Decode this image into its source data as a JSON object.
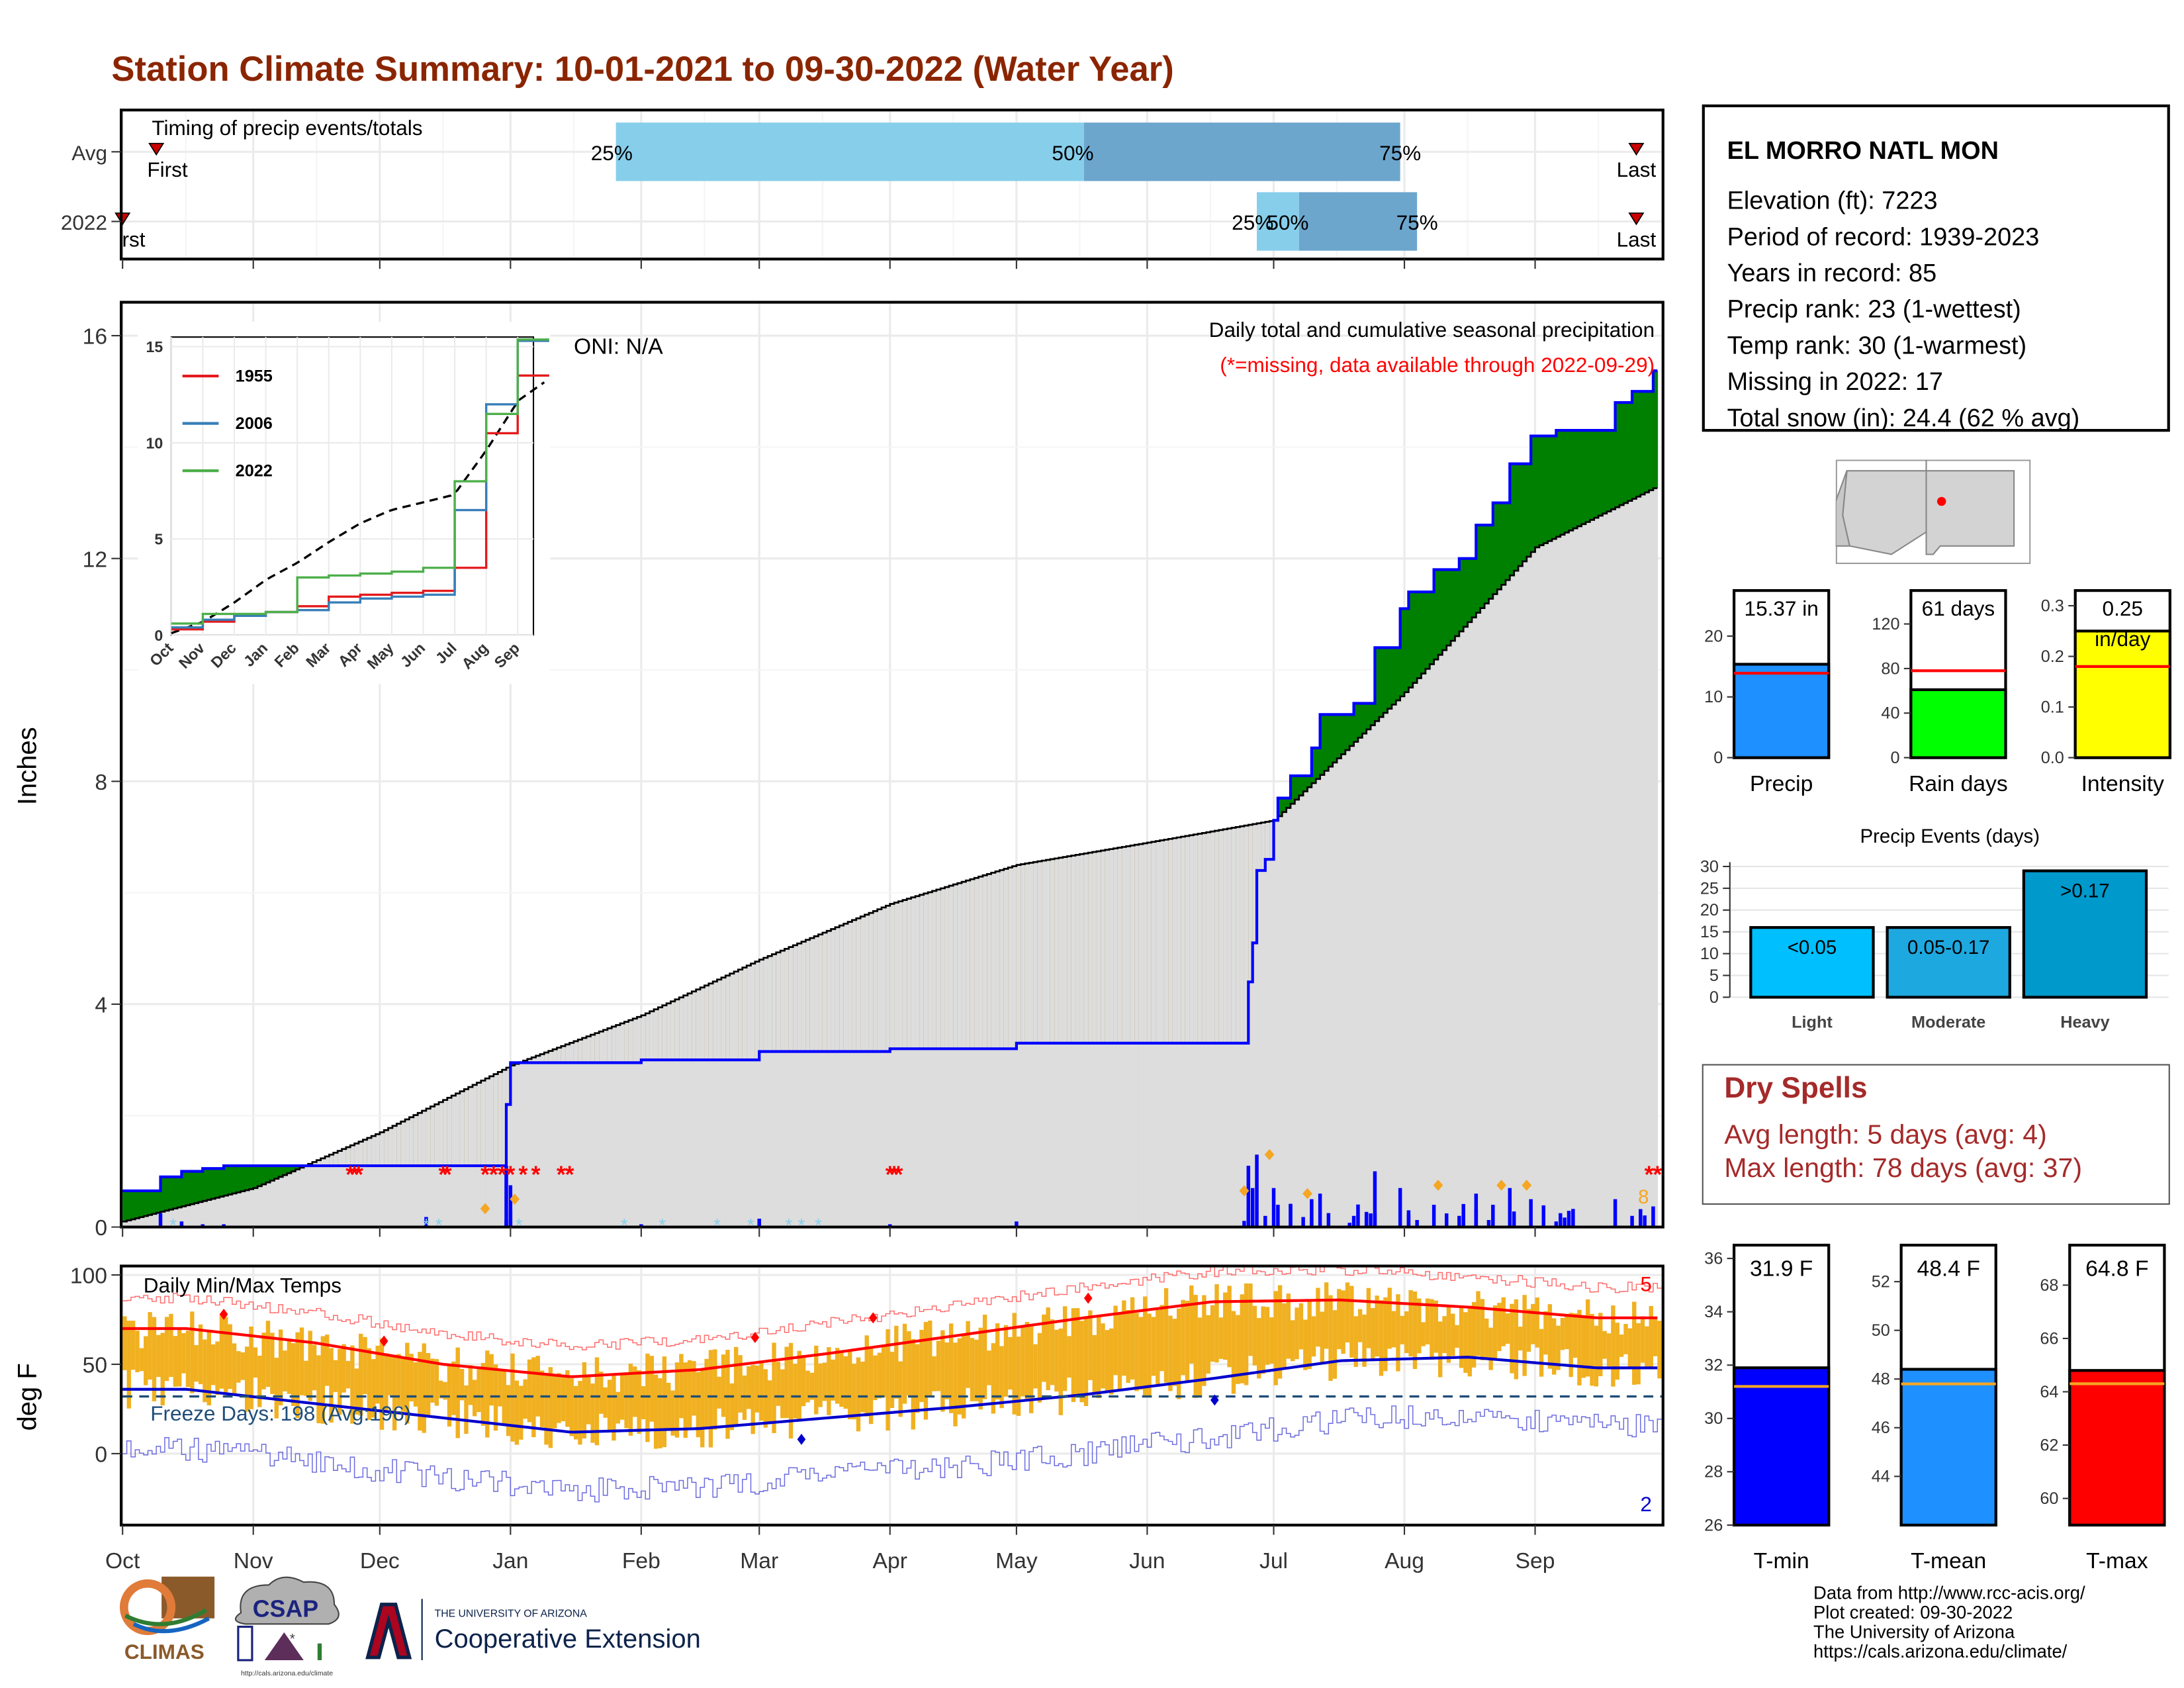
{
  "title": "Station Climate Summary: 10-01-2021 to 09-30-2022 (Water Year)",
  "station": {
    "name": "EL MORRO NATL MON",
    "lines": [
      "Elevation (ft): 7223",
      "Period of record: 1939-2023",
      "Years in record: 85",
      "Precip rank: 23 (1-wettest)",
      "Temp rank: 30 (1-warmest)",
      "Missing in 2022: 17",
      "Total snow (in): 24.4 (62 % avg)"
    ]
  },
  "timing": {
    "title": "Timing of precip events/totals",
    "rows": [
      "Avg",
      "2022"
    ],
    "first_label": "First",
    "first_label_2022": "rst",
    "last_label": "Last",
    "q25": "25%",
    "q50": "50%",
    "q75": "75%",
    "avg": {
      "first": "2021-10-09",
      "q25": "2022-01-26",
      "q50": "2022-05-17",
      "q75": "2022-07-31",
      "last": "2022-09-25"
    },
    "y2022": {
      "first": "2021-10-01",
      "q25": "2022-06-27",
      "q50": "2022-07-07",
      "q75": "2022-08-04",
      "last": "2022-09-25"
    },
    "colors": {
      "light": "#87CEEB",
      "dark": "#6CA6CD",
      "marker": "#CC0000"
    }
  },
  "months": [
    "Oct",
    "Nov",
    "Dec",
    "Jan",
    "Feb",
    "Mar",
    "Apr",
    "May",
    "Jun",
    "Jul",
    "Aug",
    "Sep"
  ],
  "precip": {
    "ylabel": "Inches",
    "yticks": [
      "0",
      "4",
      "8",
      "12",
      "16"
    ],
    "subtitle": "Daily total and cumulative seasonal precipitation",
    "missing_note": "(*=missing, data available through 2022-09-29)",
    "oni": "ONI: N/A",
    "count_label": "8",
    "colors": {
      "above": "#008000",
      "below": "#8B5A00",
      "avg_fill": "#DDDDDD",
      "obs_line": "#0000FF",
      "missing": "#FF0000"
    }
  },
  "inset": {
    "yticks": [
      "0",
      "5",
      "10",
      "15"
    ],
    "months": [
      "Oct",
      "Nov",
      "Dec",
      "Jan",
      "Feb",
      "Mar",
      "Apr",
      "May",
      "Jun",
      "Jul",
      "Aug",
      "Sep"
    ],
    "legend": [
      {
        "name": "1955",
        "color": "#E41A1C"
      },
      {
        "name": "2006",
        "color": "#377EB8"
      },
      {
        "name": "2022",
        "color": "#4DAF4A"
      }
    ]
  },
  "temp": {
    "ylabel": "deg F",
    "title": "Daily Min/Max Temps",
    "freeze": "Freeze Days: 198 (Avg:196)",
    "yticks": [
      "0",
      "50",
      "100"
    ],
    "count_max": "5",
    "count_min": "2",
    "colors": {
      "bars": "#F0B020",
      "max": "#FF0000",
      "min": "#0000CD",
      "freeze": "#1F4E79"
    }
  },
  "summary_bars": [
    {
      "name": "Precip",
      "value": 15.37,
      "avg": 13.9,
      "label": "15.37 in",
      "label2": "",
      "ymax": 27.5,
      "ticks": [
        0,
        10,
        20
      ],
      "color": "#1E90FF"
    },
    {
      "name": "Rain days",
      "value": 61,
      "avg": 78,
      "label": "61 days",
      "label2": "",
      "ymax": 150,
      "ticks": [
        0,
        40,
        80,
        120
      ],
      "color": "#00FF00"
    },
    {
      "name": "Intensity",
      "value": 0.25,
      "avg": 0.18,
      "label": "0.25",
      "label2": "in/day",
      "ymax": 0.33,
      "ticks": [
        0.0,
        0.1,
        0.2,
        0.3
      ],
      "color": "#FFFF00"
    }
  ],
  "events": {
    "title": "Precip Events (days)",
    "yticks": [
      "0",
      "5",
      "10",
      "15",
      "20",
      "25",
      "30"
    ],
    "bars": [
      {
        "name": "Light",
        "label": "<0.05",
        "value": 16
      },
      {
        "name": "Moderate",
        "label": "0.05-0.17",
        "value": 16
      },
      {
        "name": "Heavy",
        "label": ">0.17",
        "value": 29
      }
    ],
    "colors": [
      "#00BFFF",
      "#1EA8E0",
      "#0099CC"
    ]
  },
  "dry_spells": {
    "title": "Dry Spells",
    "avg": "Avg length: 5 days (avg: 4)",
    "max": "Max length: 78 days (avg: 37)"
  },
  "temp_bars": [
    {
      "name": "T-min",
      "value": 31.9,
      "avg": 31.2,
      "label": "31.9 F",
      "ymin": 26,
      "ymax": 36.5,
      "ticks": [
        26,
        28,
        30,
        32,
        34,
        36
      ],
      "color": "#0000FF"
    },
    {
      "name": "T-mean",
      "value": 48.4,
      "avg": 47.8,
      "label": "48.4 F",
      "ymin": 42,
      "ymax": 53.5,
      "ticks": [
        44,
        46,
        48,
        50,
        52
      ],
      "color": "#1E90FF"
    },
    {
      "name": "T-max",
      "value": 64.8,
      "avg": 64.3,
      "label": "64.8 F",
      "ymin": 59,
      "ymax": 69.5,
      "ticks": [
        60,
        62,
        64,
        66,
        68
      ],
      "color": "#FF0000"
    }
  ],
  "credits": [
    "Data from http://www.rcc-acis.org/",
    "Plot created: 09-30-2022",
    "The University of Arizona",
    "https://cals.arizona.edu/climate/"
  ],
  "logos": {
    "climas": "CLIMAS",
    "csap": "CSAP",
    "csap_url": "http://cals.arizona.edu/climate",
    "ua_small": "THE UNIVERSITY OF ARIZONA",
    "ua_big": "Cooperative Extension"
  },
  "chart_data": [
    {
      "type": "area",
      "title": "Daily total and cumulative seasonal precipitation",
      "ylabel": "Inches",
      "ylim": [
        0,
        16.5
      ],
      "x_months": [
        "Oct",
        "Nov",
        "Dec",
        "Jan",
        "Feb",
        "Mar",
        "Apr",
        "May",
        "Jun",
        "Jul",
        "Aug",
        "Sep"
      ],
      "series": [
        {
          "name": "cumulative observed",
          "x": [
            "2021-10-01",
            "2021-10-05",
            "2021-10-10",
            "2021-10-15",
            "2021-10-20",
            "2021-10-25",
            "2021-11-20",
            "2021-12-20",
            "2021-12-31",
            "2022-01-01",
            "2022-02-01",
            "2022-03-01",
            "2022-04-01",
            "2022-05-01",
            "2022-06-01",
            "2022-06-24",
            "2022-06-25",
            "2022-06-26",
            "2022-06-27",
            "2022-06-29",
            "2022-07-01",
            "2022-07-02",
            "2022-07-05",
            "2022-07-10",
            "2022-07-12",
            "2022-07-20",
            "2022-07-25",
            "2022-07-31",
            "2022-08-02",
            "2022-08-08",
            "2022-08-14",
            "2022-08-18",
            "2022-08-22",
            "2022-08-26",
            "2022-08-31",
            "2022-09-06",
            "2022-09-20",
            "2022-09-24",
            "2022-09-29"
          ],
          "values": [
            0.65,
            0.65,
            0.9,
            1.0,
            1.05,
            1.1,
            1.1,
            1.1,
            2.2,
            2.95,
            3.0,
            3.15,
            3.2,
            3.3,
            3.3,
            3.3,
            4.4,
            5.1,
            6.4,
            6.6,
            7.3,
            7.7,
            8.1,
            8.6,
            9.2,
            9.4,
            10.4,
            11.1,
            11.4,
            11.8,
            12.0,
            12.6,
            13.0,
            13.7,
            14.2,
            14.3,
            14.8,
            15.0,
            15.37
          ]
        },
        {
          "name": "cumulative average",
          "x": [
            "2021-10-01",
            "2021-11-01",
            "2021-12-01",
            "2022-01-01",
            "2022-02-01",
            "2022-03-01",
            "2022-04-01",
            "2022-05-01",
            "2022-06-01",
            "2022-07-01",
            "2022-08-01",
            "2022-09-01",
            "2022-09-30"
          ],
          "values": [
            0.1,
            0.7,
            1.7,
            2.9,
            3.8,
            4.8,
            5.8,
            6.5,
            6.9,
            7.3,
            9.6,
            12.2,
            13.3
          ]
        }
      ]
    },
    {
      "type": "line",
      "title": "",
      "ylim": [
        0,
        15.5
      ],
      "series": [
        {
          "name": "1955",
          "x": [
            "Oct",
            "Nov",
            "Dec",
            "Jan",
            "Feb",
            "Mar",
            "Apr",
            "May",
            "Jun",
            "Jul",
            "Aug",
            "Sep"
          ],
          "values": [
            0.3,
            0.7,
            1.0,
            1.2,
            1.5,
            2.0,
            2.1,
            2.2,
            2.3,
            3.5,
            10.5,
            13.5
          ]
        },
        {
          "name": "2006",
          "x": [
            "Oct",
            "Nov",
            "Dec",
            "Jan",
            "Feb",
            "Mar",
            "Apr",
            "May",
            "Jun",
            "Jul",
            "Aug",
            "Sep"
          ],
          "values": [
            0.4,
            0.8,
            1.0,
            1.2,
            1.3,
            1.7,
            1.9,
            2.0,
            2.1,
            6.5,
            12.0,
            15.3
          ]
        },
        {
          "name": "2022",
          "x": [
            "Oct",
            "Nov",
            "Dec",
            "Jan",
            "Feb",
            "Mar",
            "Apr",
            "May",
            "Jun",
            "Jul",
            "Aug",
            "Sep"
          ],
          "values": [
            0.6,
            1.1,
            1.1,
            1.2,
            3.0,
            3.1,
            3.2,
            3.3,
            3.5,
            8.0,
            11.5,
            15.37
          ]
        }
      ]
    },
    {
      "type": "line",
      "title": "Daily Min/Max Temps",
      "ylabel": "deg F",
      "ylim": [
        -40,
        105
      ],
      "series": [
        {
          "name": "avg max",
          "x": [
            "Oct",
            "Nov",
            "Dec",
            "Jan",
            "Feb",
            "Mar",
            "Apr",
            "May",
            "Jun",
            "Jul",
            "Aug",
            "Sep"
          ],
          "values": [
            70,
            62,
            50,
            43,
            47,
            56,
            66,
            76,
            85,
            86,
            82,
            76
          ]
        },
        {
          "name": "avg min",
          "x": [
            "Oct",
            "Nov",
            "Dec",
            "Jan",
            "Feb",
            "Mar",
            "Apr",
            "May",
            "Jun",
            "Jul",
            "Aug",
            "Sep"
          ],
          "values": [
            36,
            28,
            20,
            12,
            14,
            20,
            26,
            33,
            42,
            52,
            54,
            48
          ]
        }
      ]
    },
    {
      "type": "bar",
      "title": "Precip Events (days)",
      "categories": [
        "Light",
        "Moderate",
        "Heavy"
      ],
      "values": [
        16,
        16,
        29
      ]
    }
  ]
}
